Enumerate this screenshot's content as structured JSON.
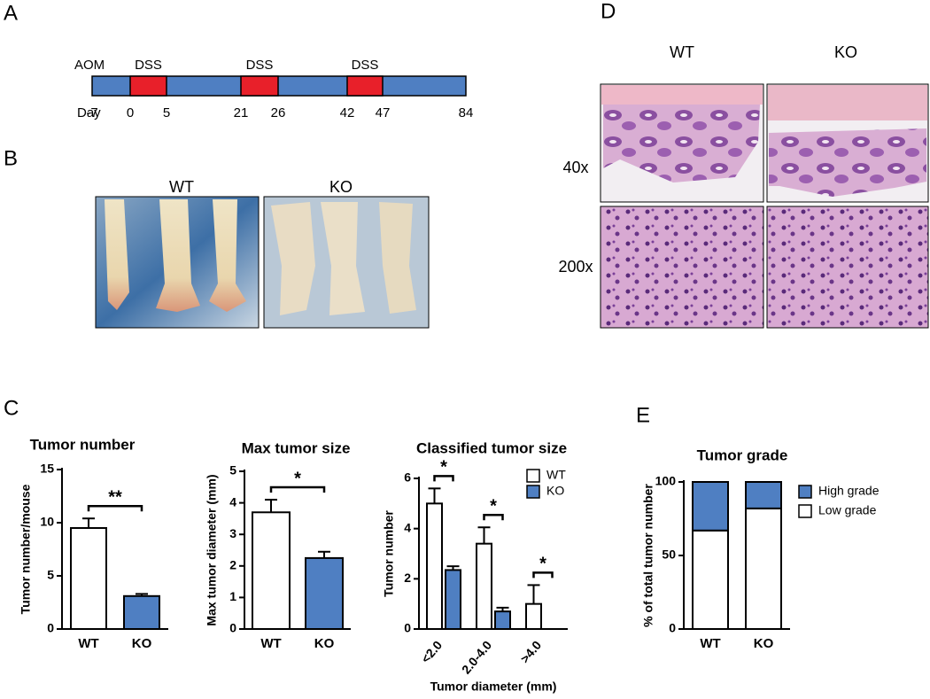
{
  "panel_labels": [
    "A",
    "B",
    "C",
    "D",
    "E"
  ],
  "timeline": {
    "start_label": "AOM",
    "axis_label": "Day",
    "days": [
      -7,
      0,
      5,
      21,
      26,
      42,
      47,
      84
    ],
    "treatments": [
      "DSS",
      "DSS",
      "DSS"
    ]
  },
  "photos_b": {
    "labels": [
      "WT",
      "KO"
    ]
  },
  "histology_d": {
    "columns": [
      "WT",
      "KO"
    ],
    "rows": [
      "40x",
      "200x"
    ]
  },
  "chart_data": [
    {
      "type": "bar",
      "title": "Tumor number",
      "y_label": "Tumor number/mouse",
      "categories": [
        "WT",
        "KO"
      ],
      "values": [
        9.5,
        3.1
      ],
      "errors": [
        0.9,
        0.2
      ],
      "colors": [
        "#ffffff",
        "#4f7fc2"
      ],
      "significance": "**",
      "ylim": [
        0,
        15
      ],
      "yticks": [
        0,
        5,
        10,
        15
      ]
    },
    {
      "type": "bar",
      "title": "Max tumor size",
      "y_label": "Max tumor diameter (mm)",
      "categories": [
        "WT",
        "KO"
      ],
      "values": [
        3.7,
        2.25
      ],
      "errors": [
        0.4,
        0.2
      ],
      "colors": [
        "#ffffff",
        "#4f7fc2"
      ],
      "significance": "*",
      "ylim": [
        0,
        5
      ],
      "yticks": [
        0,
        1,
        2,
        3,
        4,
        5
      ]
    },
    {
      "type": "bar",
      "title": "Classified tumor size",
      "y_label": "Tumor number",
      "x_label": "Tumor diameter (mm)",
      "categories": [
        "<2.0",
        "2.0-4.0",
        ">4.0"
      ],
      "series": [
        {
          "name": "WT",
          "color": "#ffffff",
          "values": [
            5.0,
            3.4,
            1.0
          ],
          "errors": [
            0.6,
            0.65,
            0.75
          ]
        },
        {
          "name": "KO",
          "color": "#4f7fc2",
          "values": [
            2.35,
            0.7,
            0
          ],
          "errors": [
            0.15,
            0.15,
            0
          ]
        }
      ],
      "significance": [
        "*",
        "*",
        "*"
      ],
      "legend": "upper right",
      "ylim": [
        0,
        6
      ],
      "yticks": [
        0,
        2,
        4,
        6
      ]
    },
    {
      "type": "stacked_bar",
      "title": "Tumor grade",
      "y_label": "% of total tumor number",
      "categories": [
        "WT",
        "KO"
      ],
      "series": [
        {
          "name": "Low grade",
          "color": "#ffffff",
          "values": [
            67,
            82
          ]
        },
        {
          "name": "High grade",
          "color": "#4f7fc2",
          "values": [
            33,
            18
          ]
        }
      ],
      "legend": "right",
      "ylim": [
        0,
        100
      ],
      "yticks": [
        0,
        50,
        100
      ]
    }
  ]
}
